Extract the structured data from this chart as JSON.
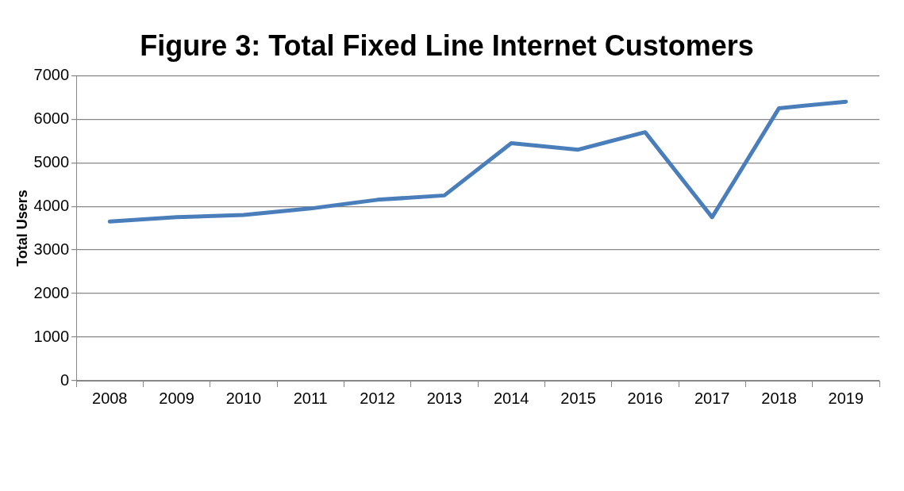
{
  "chart_data": {
    "type": "line",
    "title": "Figure 3: Total Fixed Line Internet Customers",
    "ylabel": "Total Users",
    "categories": [
      "2008",
      "2009",
      "2010",
      "2011",
      "2012",
      "2013",
      "2014",
      "2015",
      "2016",
      "2017",
      "2018",
      "2019"
    ],
    "series": [
      {
        "color": "#4a7ebb",
        "values": [
          3650,
          3750,
          3800,
          3950,
          4150,
          4250,
          5450,
          5300,
          5700,
          3750,
          6250,
          6400
        ]
      }
    ],
    "ylim": [
      0,
      7000
    ],
    "yticks": [
      0,
      1000,
      2000,
      3000,
      4000,
      5000,
      6000,
      7000
    ],
    "grid": "y",
    "legend": false,
    "marker": "none",
    "line_style": "solid"
  }
}
